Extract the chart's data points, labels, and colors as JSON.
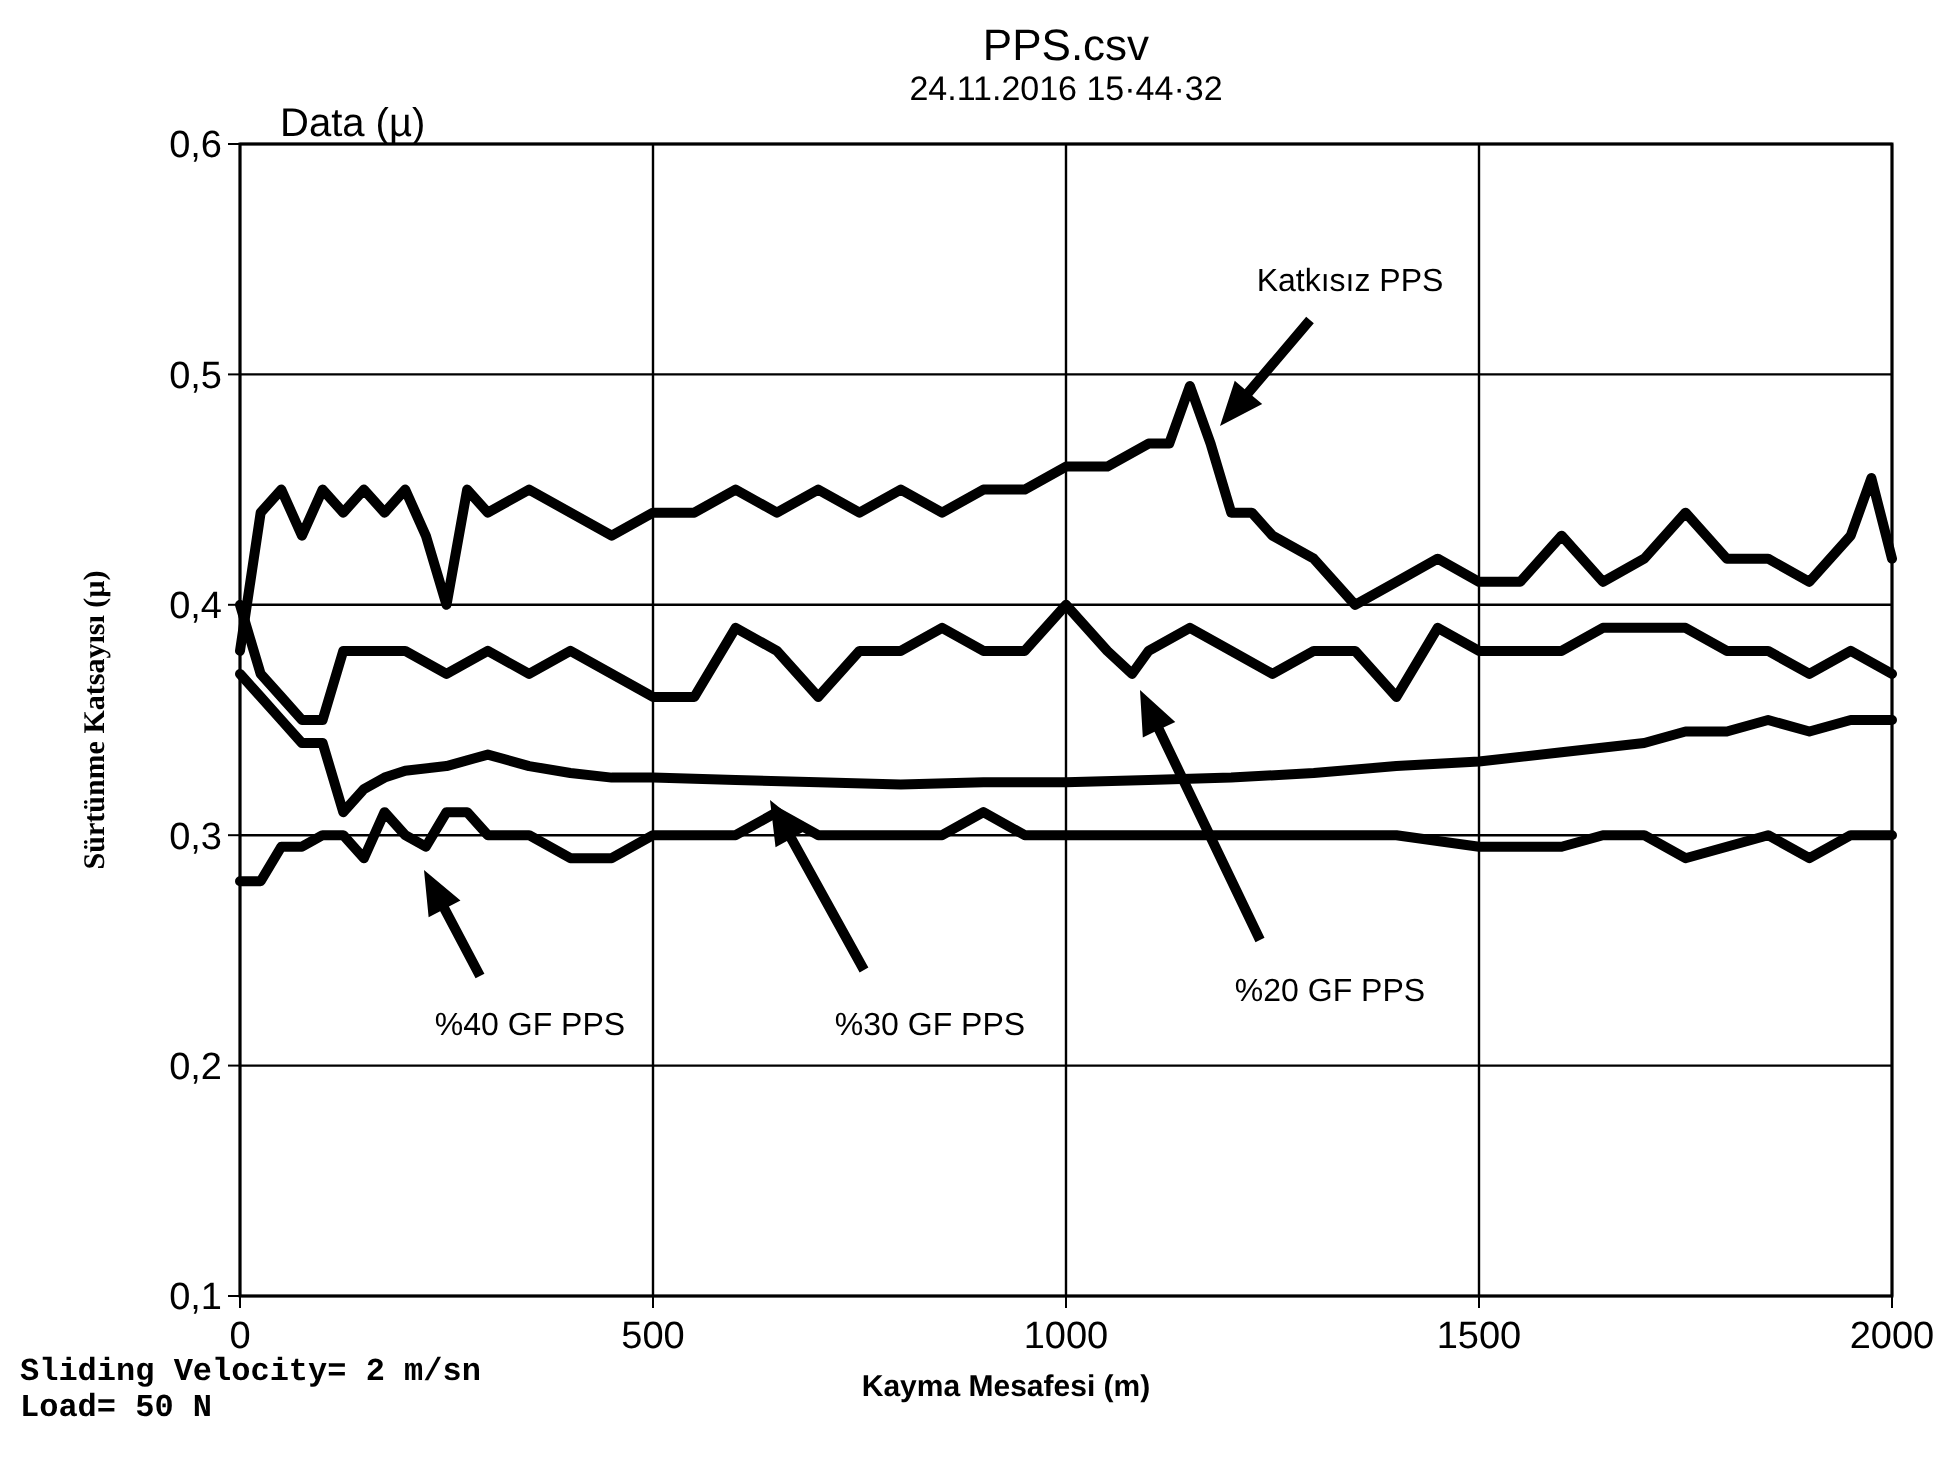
{
  "chart_data": {
    "type": "line",
    "title": "PPS.csv",
    "subtitle": "24.11.2016 15·44·32",
    "xlabel": "Kayma Mesafesi (m)",
    "ylabel": "Sürtünme Katsayısı (µ)",
    "xlim": [
      0,
      2000
    ],
    "xticks": [
      0,
      500,
      1000,
      1500,
      2000
    ],
    "ylim": [
      0.1,
      0.6
    ],
    "yticks": [
      {
        "value": 0.1,
        "label": "0,1"
      },
      {
        "value": 0.2,
        "label": "0,2"
      },
      {
        "value": 0.3,
        "label": "0,3"
      },
      {
        "value": 0.4,
        "label": "0,4"
      },
      {
        "value": 0.5,
        "label": "0,5"
      },
      {
        "value": 0.6,
        "label": "0,6"
      }
    ],
    "grid": true,
    "line_style": "solid",
    "series": [
      {
        "color": "#000000",
        "x": [
          0,
          25,
          50,
          75,
          100,
          125,
          150,
          175,
          200,
          225,
          250,
          275,
          300,
          350,
          400,
          450,
          500,
          550,
          600,
          650,
          700,
          750,
          800,
          850,
          900,
          950,
          1000,
          1050,
          1100,
          1125,
          1150,
          1175,
          1200,
          1225,
          1250,
          1300,
          1350,
          1400,
          1450,
          1500,
          1550,
          1600,
          1650,
          1700,
          1750,
          1800,
          1850,
          1900,
          1950,
          1975,
          2000
        ],
        "values": [
          0.38,
          0.44,
          0.45,
          0.43,
          0.45,
          0.44,
          0.45,
          0.44,
          0.45,
          0.43,
          0.4,
          0.45,
          0.44,
          0.45,
          0.44,
          0.43,
          0.44,
          0.44,
          0.45,
          0.44,
          0.45,
          0.44,
          0.45,
          0.44,
          0.45,
          0.45,
          0.46,
          0.46,
          0.47,
          0.47,
          0.495,
          0.47,
          0.44,
          0.44,
          0.43,
          0.42,
          0.4,
          0.41,
          0.42,
          0.41,
          0.41,
          0.43,
          0.41,
          0.42,
          0.44,
          0.42,
          0.42,
          0.41,
          0.43,
          0.455,
          0.42
        ]
      },
      {
        "color": "#000000",
        "x": [
          0,
          25,
          50,
          75,
          100,
          125,
          150,
          200,
          250,
          300,
          350,
          400,
          450,
          500,
          550,
          600,
          650,
          700,
          750,
          800,
          850,
          900,
          950,
          1000,
          1050,
          1080,
          1100,
          1150,
          1200,
          1250,
          1300,
          1350,
          1400,
          1450,
          1500,
          1550,
          1600,
          1650,
          1700,
          1750,
          1800,
          1850,
          1900,
          1950,
          2000
        ],
        "values": [
          0.4,
          0.37,
          0.36,
          0.35,
          0.35,
          0.38,
          0.38,
          0.38,
          0.37,
          0.38,
          0.37,
          0.38,
          0.37,
          0.36,
          0.36,
          0.39,
          0.38,
          0.36,
          0.38,
          0.38,
          0.39,
          0.38,
          0.38,
          0.4,
          0.38,
          0.37,
          0.38,
          0.39,
          0.38,
          0.37,
          0.38,
          0.38,
          0.36,
          0.39,
          0.38,
          0.38,
          0.38,
          0.39,
          0.39,
          0.39,
          0.38,
          0.38,
          0.37,
          0.38,
          0.37
        ]
      },
      {
        "color": "#000000",
        "x": [
          0,
          25,
          50,
          75,
          100,
          125,
          150,
          175,
          200,
          250,
          300,
          350,
          400,
          450,
          500,
          600,
          700,
          800,
          900,
          1000,
          1100,
          1200,
          1300,
          1400,
          1500,
          1600,
          1700,
          1750,
          1800,
          1850,
          1900,
          1950,
          2000
        ],
        "values": [
          0.37,
          0.36,
          0.35,
          0.34,
          0.34,
          0.31,
          0.32,
          0.325,
          0.328,
          0.33,
          0.335,
          0.33,
          0.327,
          0.325,
          0.325,
          0.324,
          0.323,
          0.322,
          0.323,
          0.323,
          0.324,
          0.325,
          0.327,
          0.33,
          0.332,
          0.336,
          0.34,
          0.345,
          0.345,
          0.35,
          0.345,
          0.35,
          0.35
        ]
      },
      {
        "color": "#000000",
        "x": [
          0,
          25,
          50,
          75,
          100,
          125,
          150,
          175,
          200,
          225,
          250,
          275,
          300,
          350,
          400,
          450,
          500,
          550,
          600,
          650,
          700,
          750,
          800,
          850,
          900,
          950,
          1000,
          1100,
          1200,
          1300,
          1400,
          1500,
          1600,
          1650,
          1700,
          1750,
          1800,
          1850,
          1900,
          1950,
          2000
        ],
        "values": [
          0.28,
          0.28,
          0.295,
          0.295,
          0.3,
          0.3,
          0.29,
          0.31,
          0.3,
          0.295,
          0.31,
          0.31,
          0.3,
          0.3,
          0.29,
          0.29,
          0.3,
          0.3,
          0.3,
          0.31,
          0.3,
          0.3,
          0.3,
          0.3,
          0.31,
          0.3,
          0.3,
          0.3,
          0.3,
          0.3,
          0.3,
          0.295,
          0.295,
          0.3,
          0.3,
          0.29,
          0.295,
          0.3,
          0.29,
          0.3,
          0.3
        ]
      }
    ],
    "annotations": [
      "Katkısız PPS",
      "%20 GF PPS",
      "%30 GF PPS",
      "%40 GF PPS",
      "Data (µ)",
      "Sliding Velocity= 2 m/sn",
      "Load= 50 N"
    ]
  }
}
